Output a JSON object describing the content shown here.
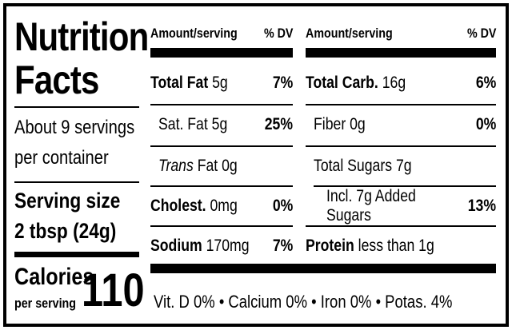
{
  "title": [
    "Nutrition",
    "Facts"
  ],
  "servings": [
    "About 9 servings",
    "per container"
  ],
  "serving_size": {
    "label": "Serving size",
    "value": "2 tbsp (24g)"
  },
  "calories": {
    "label": "Calories",
    "sub": "per serving",
    "value": "110"
  },
  "columns": [
    {
      "header": {
        "amount": "Amount/serving",
        "dv": "% DV"
      },
      "rows": [
        {
          "bold": "Total Fat",
          "text": "5g",
          "dv": "7%"
        },
        {
          "text": "Sat. Fat 5g",
          "dv": "25%"
        },
        {
          "italic": "Trans",
          "text": "Fat 0g"
        },
        {
          "bold": "Cholest.",
          "text": "0mg",
          "dv": "0%"
        },
        {
          "bold": "Sodium",
          "text": "170mg",
          "dv": "7%"
        }
      ]
    },
    {
      "header": {
        "amount": "Amount/serving",
        "dv": "% DV"
      },
      "rows": [
        {
          "bold": "Total Carb.",
          "text": "16g",
          "dv": "6%"
        },
        {
          "text": "Fiber 0g",
          "dv": "0%"
        },
        {
          "text": "Total Sugars 7g"
        },
        {
          "text": "Incl. 7g Added Sugars",
          "dv": "13%"
        },
        {
          "bold": "Protein",
          "text": "less than 1g"
        }
      ]
    }
  ],
  "vitamins": "Vit. D 0% • Calcium 0% • Iron 0% • Potas. 4%"
}
